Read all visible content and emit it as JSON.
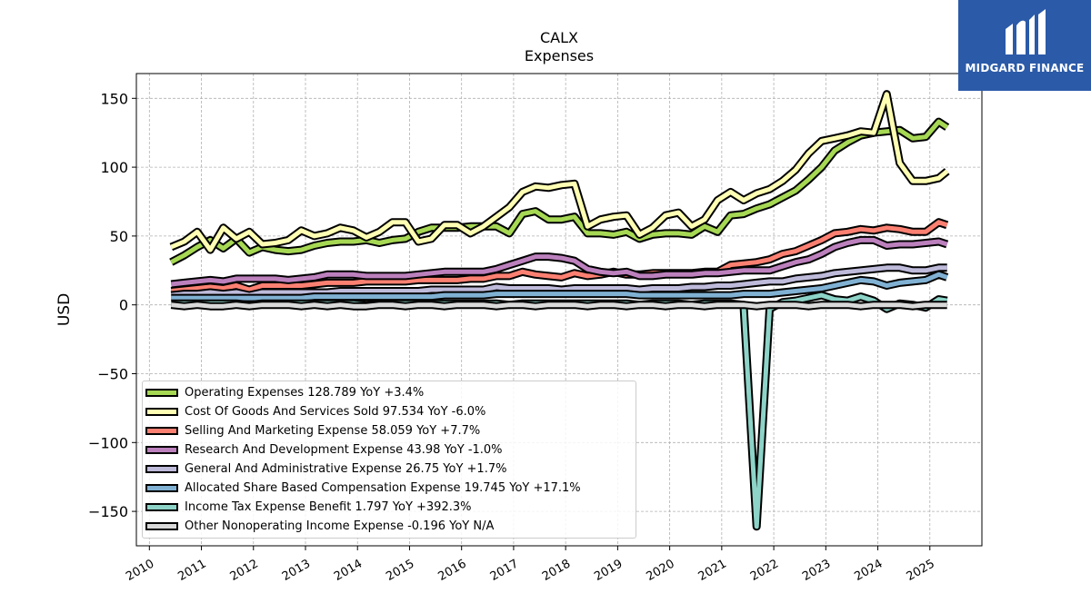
{
  "chart_data": {
    "type": "line",
    "title": "CALX",
    "subtitle": "Expenses",
    "xlabel": "",
    "ylabel": "USD",
    "ylim": [
      -175,
      168
    ],
    "xlim": [
      2009.75,
      2026.0
    ],
    "yticks": [
      -150,
      -100,
      -50,
      0,
      50,
      100,
      150
    ],
    "ytick_labels": [
      "−150",
      "−100",
      "−50",
      "0",
      "50",
      "100",
      "150"
    ],
    "xticks": [
      "2010",
      "2011",
      "2012",
      "2013",
      "2014",
      "2015",
      "2016",
      "2017",
      "2018",
      "2019",
      "2020",
      "2021",
      "2022",
      "2023",
      "2024",
      "2025"
    ],
    "grid": true,
    "legend_position": "lower-left",
    "x": [
      2010.42,
      2010.67,
      2010.92,
      2011.17,
      2011.42,
      2011.67,
      2011.92,
      2012.17,
      2012.42,
      2012.67,
      2012.92,
      2013.17,
      2013.42,
      2013.67,
      2013.92,
      2014.17,
      2014.42,
      2014.67,
      2014.92,
      2015.17,
      2015.42,
      2015.67,
      2015.92,
      2016.17,
      2016.42,
      2016.67,
      2016.92,
      2017.17,
      2017.42,
      2017.67,
      2017.92,
      2018.17,
      2018.42,
      2018.67,
      2018.92,
      2019.17,
      2019.42,
      2019.67,
      2019.92,
      2020.17,
      2020.42,
      2020.67,
      2020.92,
      2021.17,
      2021.42,
      2021.67,
      2021.92,
      2022.17,
      2022.42,
      2022.67,
      2022.92,
      2023.17,
      2023.42,
      2023.67,
      2023.92,
      2024.17,
      2024.42,
      2024.67,
      2024.92,
      2025.17,
      2025.33
    ],
    "series": [
      {
        "name": "Operating Expenses",
        "legend": "Operating Expenses  128.789 YoY +3.4%",
        "color": "#a6d854",
        "values": [
          31,
          36,
          42,
          47,
          41,
          48,
          38,
          42,
          40,
          39,
          40,
          43,
          45,
          46,
          46,
          47,
          45,
          47,
          48,
          53,
          56,
          56,
          56,
          57,
          57,
          57,
          52,
          66,
          68,
          62,
          62,
          64,
          52,
          52,
          51,
          53,
          48,
          51,
          52,
          52,
          51,
          57,
          53,
          65,
          66,
          70,
          73,
          78,
          83,
          91,
          100,
          112,
          118,
          123,
          125,
          126,
          127,
          121,
          122,
          133,
          129
        ]
      },
      {
        "name": "Cost Of Goods And Services Sold",
        "legend": "Cost Of Goods And Services Sold  97.534 YoY -6.0%",
        "color": "#ffffb3",
        "values": [
          42,
          46,
          53,
          40,
          56,
          48,
          53,
          44,
          45,
          47,
          54,
          50,
          52,
          56,
          54,
          49,
          53,
          60,
          60,
          46,
          48,
          58,
          58,
          52,
          57,
          64,
          71,
          82,
          86,
          85,
          87,
          88,
          57,
          62,
          64,
          65,
          51,
          56,
          65,
          67,
          57,
          62,
          76,
          82,
          76,
          81,
          84,
          90,
          98,
          110,
          119,
          121,
          123,
          126,
          125,
          153,
          103,
          90,
          90,
          92,
          97
        ]
      },
      {
        "name": "Selling And Marketing Expense",
        "legend": "Selling And Marketing Expense  58.059 YoY +7.7%",
        "color": "#fb8072",
        "values": [
          10,
          11,
          12,
          13,
          12,
          14,
          11,
          14,
          14,
          14,
          14,
          15,
          16,
          16,
          16,
          17,
          17,
          17,
          17,
          18,
          18,
          18,
          18,
          19,
          19,
          21,
          21,
          24,
          22,
          21,
          20,
          23,
          21,
          22,
          24,
          22,
          22,
          23,
          23,
          23,
          23,
          24,
          24,
          29,
          30,
          31,
          33,
          37,
          39,
          43,
          47,
          52,
          53,
          55,
          54,
          56,
          55,
          53,
          53,
          60,
          58
        ]
      },
      {
        "name": "Research And Development Expense",
        "legend": "Research And Development Expense  43.98 YoY -1.0%",
        "color": "#bc80bd",
        "values": [
          15,
          16,
          17,
          18,
          17,
          19,
          19,
          19,
          19,
          18,
          19,
          20,
          22,
          22,
          22,
          21,
          21,
          21,
          21,
          22,
          23,
          24,
          24,
          24,
          24,
          26,
          29,
          32,
          35,
          35,
          34,
          32,
          26,
          24,
          23,
          24,
          21,
          21,
          22,
          22,
          22,
          23,
          23,
          24,
          25,
          25,
          25,
          28,
          31,
          33,
          37,
          42,
          45,
          47,
          47,
          43,
          44,
          44,
          45,
          46,
          44
        ]
      },
      {
        "name": "General And Administrative Expense",
        "legend": "General And Administrative Expense  26.75 YoY +1.7%",
        "color": "#bebada",
        "values": [
          7,
          8,
          8,
          9,
          8,
          9,
          7,
          9,
          9,
          9,
          9,
          9,
          9,
          10,
          10,
          10,
          10,
          10,
          10,
          10,
          11,
          11,
          11,
          11,
          11,
          13,
          12,
          12,
          12,
          12,
          11,
          12,
          12,
          12,
          12,
          12,
          11,
          12,
          12,
          12,
          13,
          13,
          14,
          14,
          15,
          16,
          17,
          17,
          19,
          20,
          21,
          23,
          24,
          25,
          26,
          27,
          27,
          25,
          25,
          27,
          27
        ]
      },
      {
        "name": "Allocated Share Based Compensation Expense",
        "legend": "Allocated Share Based Compensation Expense  19.745 YoY +17.1%",
        "color": "#80b1d3",
        "values": [
          5,
          5,
          5,
          5,
          5,
          5,
          5,
          5,
          5,
          5,
          5,
          6,
          6,
          6,
          6,
          6,
          6,
          6,
          6,
          6,
          6,
          7,
          7,
          7,
          7,
          8,
          8,
          8,
          8,
          8,
          8,
          8,
          8,
          8,
          8,
          8,
          7,
          7,
          7,
          7,
          7,
          7,
          7,
          7,
          8,
          8,
          8,
          9,
          10,
          11,
          12,
          14,
          16,
          18,
          17,
          14,
          16,
          17,
          18,
          22,
          20
        ]
      },
      {
        "name": "Income Tax Expense Benefit",
        "legend": "Income Tax Expense Benefit  1.797 YoY +392.3%",
        "color": "#8dd3c7",
        "values": [
          1,
          1,
          1,
          1,
          1,
          1,
          0,
          1,
          1,
          1,
          1,
          1,
          1,
          1,
          1,
          0,
          1,
          1,
          1,
          1,
          1,
          1,
          1,
          1,
          1,
          1,
          0,
          1,
          1,
          1,
          1,
          1,
          1,
          1,
          1,
          1,
          0,
          1,
          1,
          1,
          0,
          1,
          1,
          1,
          0,
          -161,
          -3,
          2,
          3,
          5,
          7,
          4,
          3,
          6,
          3,
          -3,
          1,
          0,
          -2,
          4,
          3
        ]
      },
      {
        "name": "Other Nonoperating Income Expense",
        "legend": "Other Nonoperating Income Expense  -0.196 YoY N/A",
        "color": "#d9d9d9",
        "values": [
          0,
          -1,
          0,
          -1,
          -1,
          0,
          -1,
          0,
          0,
          0,
          -1,
          0,
          -1,
          0,
          -1,
          -1,
          0,
          0,
          -1,
          0,
          0,
          -1,
          0,
          0,
          0,
          -1,
          0,
          0,
          -1,
          0,
          0,
          0,
          -1,
          0,
          0,
          -1,
          0,
          0,
          -1,
          0,
          0,
          -1,
          0,
          0,
          0,
          -1,
          0,
          0,
          0,
          -1,
          0,
          0,
          0,
          -1,
          0,
          0,
          0,
          -1,
          0,
          0,
          0
        ]
      }
    ]
  },
  "logo": {
    "text": "MIDGARD FINANCE"
  }
}
